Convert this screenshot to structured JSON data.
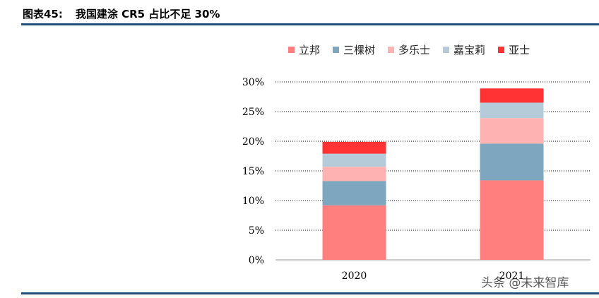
{
  "header": {
    "figure_label": "图表45:",
    "title": "我国建涂 CR5 占比不足 30%"
  },
  "watermark": "头条 @未来智库",
  "chart_data": {
    "type": "bar",
    "stacked": true,
    "categories": [
      "2020",
      "2021"
    ],
    "series": [
      {
        "name": "立邦",
        "color": "#ff7f7f",
        "values": [
          9.2,
          13.4
        ]
      },
      {
        "name": "三棵树",
        "color": "#7fa6bf",
        "values": [
          4.1,
          6.2
        ]
      },
      {
        "name": "多乐士",
        "color": "#ffb2b2",
        "values": [
          2.4,
          4.3
        ]
      },
      {
        "name": "嘉宝莉",
        "color": "#b6cbd9",
        "values": [
          2.2,
          2.6
        ]
      },
      {
        "name": "亚士",
        "color": "#ff3333",
        "values": [
          2.0,
          2.4
        ]
      }
    ],
    "y_ticks": [
      "0%",
      "5%",
      "10%",
      "15%",
      "20%",
      "25%",
      "30%"
    ],
    "ylim": [
      0,
      30
    ],
    "grid": true,
    "legend_position": "top"
  }
}
